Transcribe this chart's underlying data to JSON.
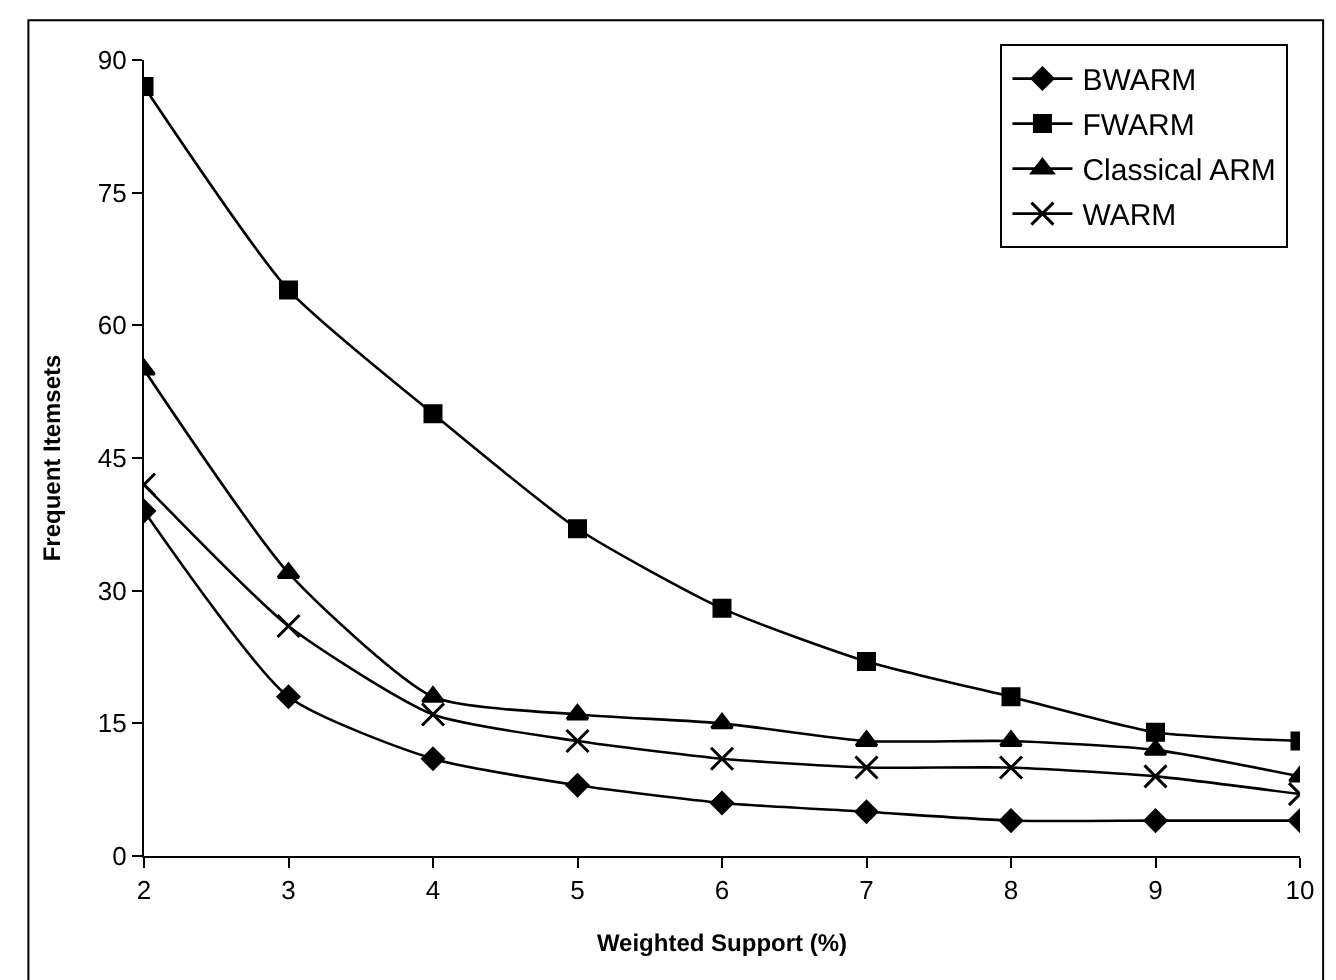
{
  "chart_data": {
    "type": "line",
    "xlabel": "Weighted Support (%)",
    "ylabel": "Frequent Itemsets",
    "x": [
      2,
      3,
      4,
      5,
      6,
      7,
      8,
      9,
      10
    ],
    "series": [
      {
        "name": "BWARM",
        "color": "#000000",
        "marker": "diamond",
        "values": [
          39,
          18,
          11,
          8,
          6,
          5,
          4,
          4,
          4
        ]
      },
      {
        "name": "FWARM",
        "color": "#000000",
        "marker": "square",
        "values": [
          87,
          64,
          50,
          37,
          28,
          22,
          18,
          14,
          13
        ]
      },
      {
        "name": "Classical ARM",
        "color": "#000000",
        "marker": "triangle",
        "values": [
          55,
          32,
          18,
          16,
          15,
          13,
          13,
          12,
          9
        ]
      },
      {
        "name": "WARM",
        "color": "#000000",
        "marker": "cross",
        "values": [
          42,
          26,
          16,
          13,
          11,
          10,
          10,
          9,
          7
        ]
      }
    ],
    "xlim": [
      2,
      10
    ],
    "xticks": [
      2,
      3,
      4,
      5,
      6,
      7,
      8,
      9,
      10
    ],
    "ylim": [
      0,
      90
    ],
    "yticks": [
      0,
      15,
      30,
      45,
      60,
      75,
      90
    ],
    "grid": false,
    "legend": "top right",
    "line_style": "solid"
  }
}
